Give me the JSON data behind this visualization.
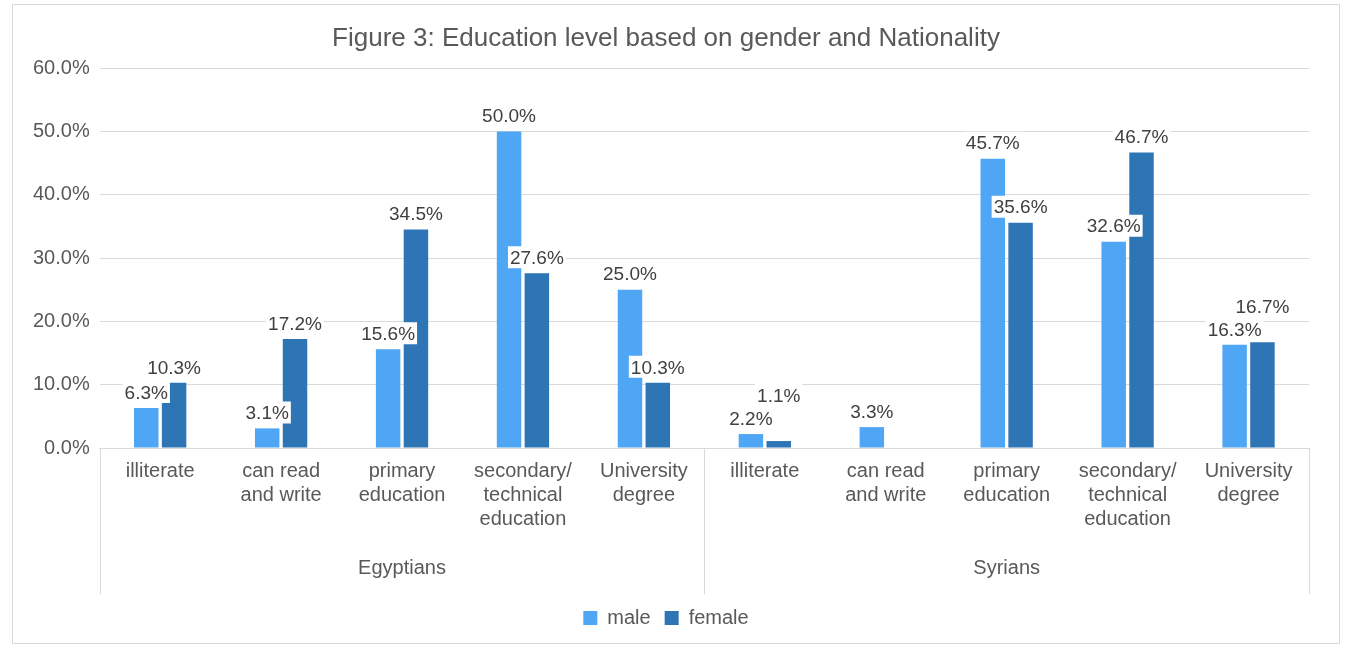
{
  "chart_data": {
    "type": "bar",
    "title": "Figure 3: Education level based on gender and Nationality",
    "categories": [
      "illiterate",
      "can read and write",
      "primary education",
      "secondary/ technical education",
      "University degree",
      "illiterate",
      "can read and write",
      "primary education",
      "secondary/ technical education",
      "University degree"
    ],
    "series": [
      {
        "name": "male",
        "color": "#4ea6f4",
        "values": [
          6.3,
          3.1,
          15.6,
          50.0,
          25.0,
          2.2,
          3.3,
          45.7,
          32.6,
          16.3
        ],
        "value_labels": [
          "6.3%",
          "3.1%",
          "15.6%",
          "50.0%",
          "25.0%",
          "2.2%",
          "3.3%",
          "45.7%",
          "32.6%",
          "16.3%"
        ]
      },
      {
        "name": "female",
        "color": "#2e75b6",
        "values": [
          10.3,
          17.2,
          34.5,
          27.6,
          10.3,
          1.1,
          null,
          35.6,
          46.7,
          16.7
        ],
        "value_labels": [
          "10.3%",
          "17.2%",
          "34.5%",
          "27.6%",
          "10.3%",
          "1.1%",
          null,
          "35.6%",
          "46.7%",
          "16.7%"
        ]
      }
    ],
    "annotations": [
      "Egyptians",
      "Syrians"
    ],
    "ylim": [
      0,
      60
    ],
    "yticks": [
      {
        "value": 0,
        "label": "0.0%"
      },
      {
        "value": 10,
        "label": "10.0%"
      },
      {
        "value": 20,
        "label": "20.0%"
      },
      {
        "value": 30,
        "label": "30.0%"
      },
      {
        "value": 40,
        "label": "40.0%"
      },
      {
        "value": 50,
        "label": "50.0%"
      },
      {
        "value": 60,
        "label": "60.0%"
      }
    ],
    "grid": "y",
    "legend": "bottom"
  }
}
